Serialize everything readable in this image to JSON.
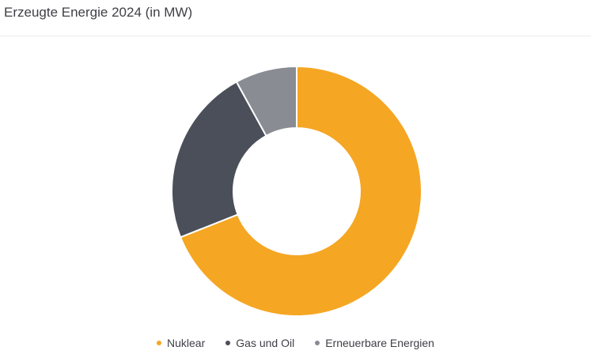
{
  "header": {
    "title": "Erzeugte Energie 2024 (in MW)"
  },
  "chart_data": {
    "type": "pie",
    "title": "Erzeugte Energie 2024 (in MW)",
    "donut": true,
    "legend_position": "bottom",
    "categories": [
      "Nuklear",
      "Gas und Oil",
      "Erneuerbare Energien"
    ],
    "values": [
      69,
      23,
      8
    ],
    "colors": [
      "#f5a623",
      "#4b4f5a",
      "#8a8c93"
    ]
  }
}
